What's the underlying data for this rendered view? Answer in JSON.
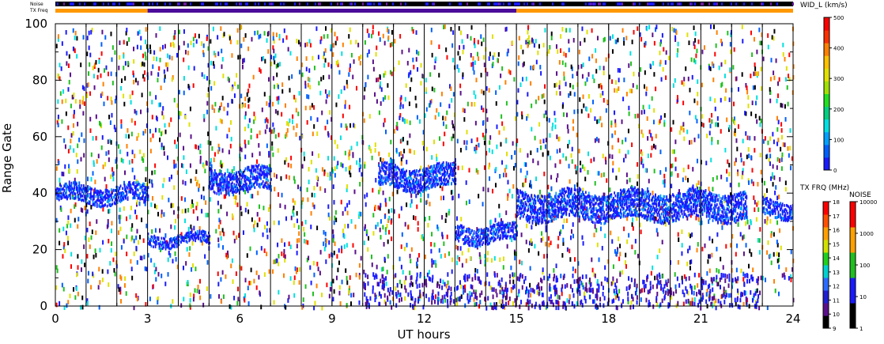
{
  "chart_data": {
    "type": "heatmap",
    "xlabel": "UT hours",
    "ylabel": "Range Gate",
    "xlim": [
      0,
      24
    ],
    "ylim": [
      0,
      100
    ],
    "x_ticks": [
      "0",
      "3",
      "6",
      "9",
      "12",
      "15",
      "18",
      "21",
      "24"
    ],
    "y_ticks": [
      "0",
      "20",
      "40",
      "60",
      "80",
      "100"
    ],
    "grid": "vertical lines every hour",
    "top_bars": {
      "noise_label": "Noise",
      "txfreq_label": "TX Freq",
      "txfreq_segments": [
        {
          "start": 0,
          "end": 3,
          "color": "#ff9900"
        },
        {
          "start": 3,
          "end": 15,
          "color": "#4b0c9a"
        },
        {
          "start": 15,
          "end": 24,
          "color": "#ff9900"
        }
      ]
    },
    "colorbars": [
      {
        "title": "WID_L (km/s)",
        "ticks": [
          "0",
          "100",
          "200",
          "300",
          "400",
          "500"
        ],
        "colors": [
          "#1a1aff",
          "#0060ff",
          "#00a0ff",
          "#00e0e0",
          "#00d080",
          "#20e020",
          "#a0e000",
          "#e0e000",
          "#ffc000",
          "#ff8000",
          "#ff3000",
          "#ff0000"
        ]
      },
      {
        "title": "TX FRQ (MHz)",
        "ticks": [
          "9",
          "10",
          "11",
          "12",
          "13",
          "14",
          "15",
          "16",
          "17",
          "18"
        ],
        "colors": [
          "#000000",
          "#5a0f8a",
          "#2020d0",
          "#2b6bff",
          "#00d0d0",
          "#20d020",
          "#d0e000",
          "#ffa000",
          "#ff5000",
          "#ff0000"
        ]
      },
      {
        "title": "NOISE",
        "ticks": [
          "1",
          "10",
          "100",
          "1000",
          "10000"
        ],
        "colors": [
          "#000000",
          "#1a1aff",
          "#20c020",
          "#ffa000",
          "#ff0000"
        ]
      }
    ],
    "features": [
      {
        "name": "band",
        "x_start": 0,
        "x_end": 3,
        "gate_center": 40,
        "gate_width": 6
      },
      {
        "name": "band",
        "x_start": 3,
        "x_end": 5,
        "gate_center": 24,
        "gate_width": 4
      },
      {
        "name": "band",
        "x_start": 5,
        "x_end": 7,
        "gate_center": 45,
        "gate_width": 8
      },
      {
        "name": "band",
        "x_start": 10.5,
        "x_end": 13,
        "gate_center": 46,
        "gate_width": 8
      },
      {
        "name": "band",
        "x_start": 13,
        "x_end": 15,
        "gate_center": 26,
        "gate_width": 6
      },
      {
        "name": "band",
        "x_start": 15,
        "x_end": 22.5,
        "gate_center": 36,
        "gate_width": 10
      },
      {
        "name": "band",
        "x_start": 23,
        "x_end": 24,
        "gate_center": 35,
        "gate_width": 6
      }
    ]
  }
}
